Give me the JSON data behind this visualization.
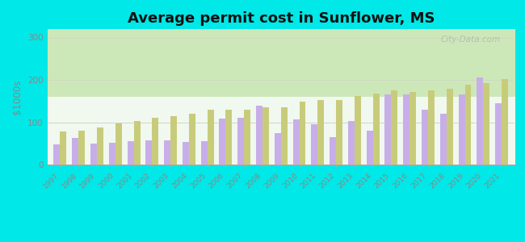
{
  "title": "Average permit cost in Sunflower, MS",
  "ylabel": "$1000s",
  "years": [
    1997,
    1998,
    1999,
    2000,
    2001,
    2002,
    2003,
    2004,
    2005,
    2006,
    2007,
    2008,
    2009,
    2010,
    2011,
    2012,
    2013,
    2014,
    2015,
    2016,
    2017,
    2018,
    2019,
    2020,
    2021
  ],
  "sunflower": [
    47,
    62,
    50,
    52,
    55,
    57,
    57,
    53,
    55,
    108,
    110,
    140,
    75,
    107,
    95,
    65,
    102,
    80,
    165,
    165,
    130,
    120,
    165,
    205,
    145
  ],
  "ms_avg": [
    78,
    80,
    88,
    98,
    102,
    110,
    115,
    120,
    130,
    130,
    130,
    135,
    135,
    148,
    152,
    152,
    162,
    168,
    175,
    172,
    175,
    180,
    188,
    193,
    202
  ],
  "sunflower_color": "#c8aee8",
  "ms_avg_color": "#c8cc7a",
  "background_fig": "#00e8e8",
  "ylim": [
    0,
    320
  ],
  "yticks": [
    0,
    100,
    200,
    300
  ],
  "title_fontsize": 13,
  "watermark": "City-Data.com",
  "grid_color": "#d0d8c0",
  "tick_color": "#888888",
  "label_color": "#888888"
}
